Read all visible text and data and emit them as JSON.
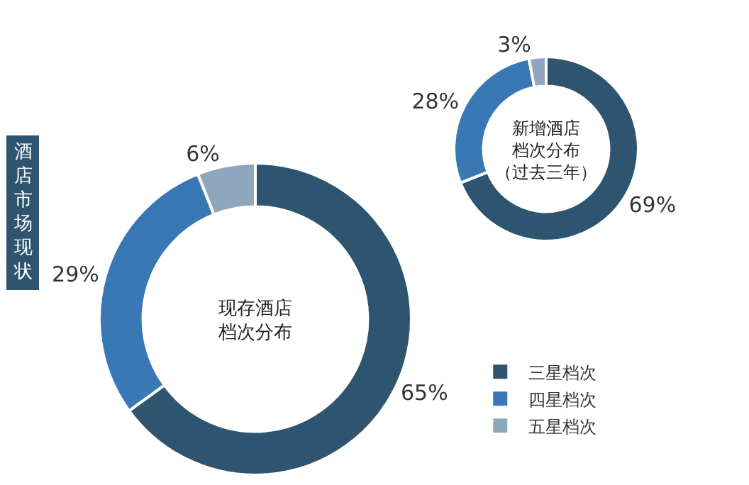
{
  "chart_data": [
    {
      "type": "donut",
      "title": "现存酒店档次分布",
      "categories": [
        "三星档次",
        "四星档次",
        "五星档次"
      ],
      "values": [
        65,
        29,
        6
      ],
      "colors": [
        "#2e5470",
        "#3a78b5",
        "#8fa6bf"
      ],
      "value_labels": [
        "65%",
        "29%",
        "6%"
      ],
      "legend": "bottom right",
      "annotations": [
        "酒店市场现状"
      ]
    },
    {
      "type": "donut",
      "title": "新增酒店档次分布（过去三年）",
      "categories": [
        null,
        null,
        null
      ],
      "values": [
        69,
        28,
        3
      ],
      "colors": [
        "#2e5470",
        "#3a78b5",
        "#8fa6bf"
      ],
      "value_labels": [
        "69%",
        "28%",
        "3%"
      ]
    }
  ]
}
